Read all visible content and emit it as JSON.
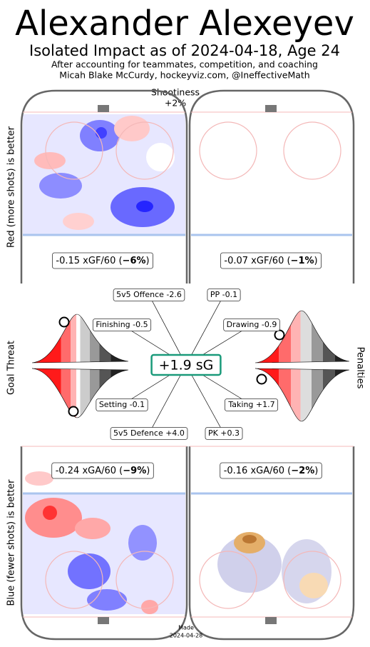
{
  "header": {
    "title": "Alexander Alexeyev",
    "subtitle": "Isolated Impact as of 2024-04-18, Age 24",
    "note": "After accounting for teammates, competition, and coaching",
    "credit": "Micah Blake McCurdy, hockeyviz.com, @IneffectiveMath"
  },
  "shootiness": {
    "label": "Shootiness",
    "value": "+2%"
  },
  "side_labels": {
    "top": "Red (more shots) is better",
    "middle": "Goal Threat",
    "bottom": "Blue (fewer shots) is better",
    "right": "Penalties"
  },
  "rink_boxes": [
    {
      "text": "-0.15 xGF/60 (",
      "bold": "−6%",
      "end": ")"
    },
    {
      "text": "-0.07 xGF/60 (",
      "bold": "−1%",
      "end": ")"
    },
    {
      "text": "-0.24 xGA/60 (",
      "bold": "−9%",
      "end": ")"
    },
    {
      "text": "-0.16 xGA/60 (",
      "bold": "−2%",
      "end": ")"
    }
  ],
  "total": "+1.9 sG",
  "components": [
    "5v5 Offence -2.6",
    "PP -0.1",
    "Finishing -0.5",
    "Drawing -0.9",
    "Setting -0.1",
    "Taking +1.7",
    "5v5 Defence +4.0",
    "PK +0.3"
  ],
  "footer": {
    "made": "Made",
    "date": "2024-04-28"
  }
}
